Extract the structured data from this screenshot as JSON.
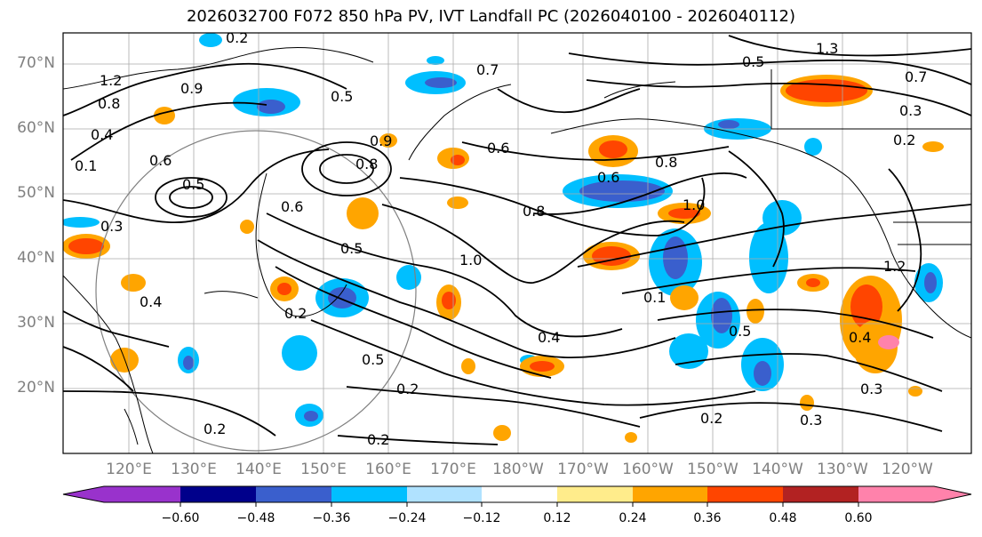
{
  "title": "2026032700 F072 850 hPa PV, IVT Landfall PC (2026040100 - 2026040112)",
  "map": {
    "lat_labels": [
      "70°N",
      "60°N",
      "50°N",
      "40°N",
      "30°N",
      "20°N"
    ],
    "lon_labels": [
      "120°E",
      "130°E",
      "140°E",
      "150°E",
      "160°E",
      "170°E",
      "180°W",
      "170°W",
      "160°W",
      "150°W",
      "140°W",
      "130°W",
      "120°W"
    ],
    "contour_labels": [
      "1.2",
      "0.8",
      "0.4",
      "0.1",
      "0.9",
      "0.6",
      "0.3",
      "0.5",
      "0.4",
      "0.6",
      "0.8",
      "0.5",
      "0.9",
      "1.0",
      "0.8",
      "0.2",
      "0.7",
      "0.2",
      "0.5",
      "1.3",
      "0.2",
      "0.7",
      "0.8",
      "0.3",
      "0.2",
      "0.6",
      "1.0",
      "0.6",
      "0.5",
      "0.4",
      "0.1",
      "0.2",
      "0.2",
      "0.4",
      "0.5",
      "0.5",
      "0.3",
      "0.3",
      "0.2",
      "1.2"
    ]
  },
  "colorbar": {
    "tick_labels": [
      "−0.60",
      "−0.48",
      "−0.36",
      "−0.24",
      "−0.12",
      "0.12",
      "0.24",
      "0.36",
      "0.48",
      "0.60"
    ],
    "colors": [
      "#9932cc",
      "#00008b",
      "#3a5fcd",
      "#00bfff",
      "#b0e2ff",
      "#ffffff",
      "#ffec8b",
      "#ffa500",
      "#ff4500",
      "#b22222",
      "#ff82ab"
    ]
  }
}
